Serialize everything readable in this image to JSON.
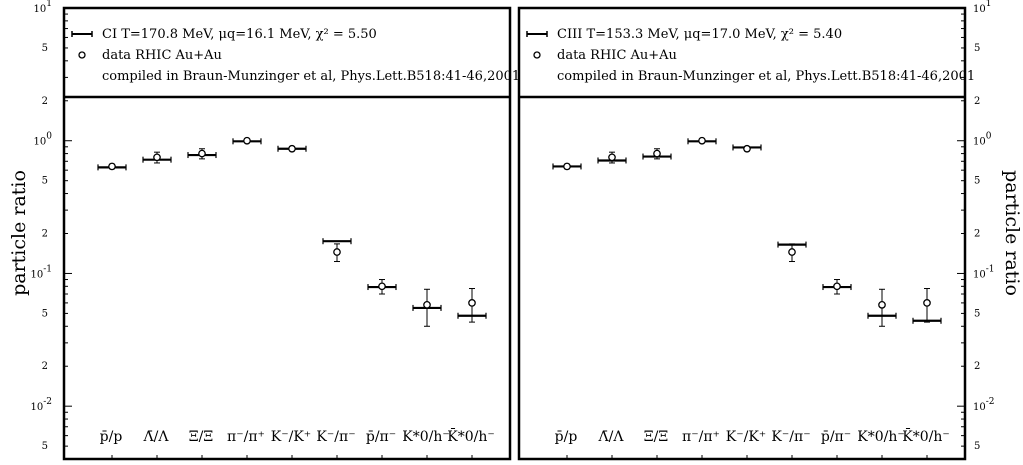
{
  "y_axis_label": "particle ratio",
  "chart_data": [
    {
      "type": "scatter",
      "y_scale": "log",
      "ylim": [
        0.004,
        10
      ],
      "ylabel": "particle ratio",
      "legend_position": "top",
      "legend": {
        "model_text": "CI T=170.8 MeV, μq=16.1 MeV, χ² = 5.50",
        "data_text": "data RHIC Au+Au",
        "compiled_text": "compiled in Braun-Munzinger et al, Phys.Lett.B518:41-46,2001"
      },
      "categories": [
        "p̄/p",
        "Λ̄/Λ",
        "Ξ̄/Ξ",
        "π⁻/π⁺",
        "K⁻/K⁺",
        "K⁻/π⁻",
        "p̄/π⁻",
        "K*0/h⁻",
        "K̄*0/h⁻"
      ],
      "series": [
        {
          "name": "CI T=170.8 MeV",
          "kind": "model",
          "values": [
            0.63,
            0.72,
            0.78,
            0.99,
            0.87,
            0.175,
            0.079,
            0.055,
            0.048
          ]
        },
        {
          "name": "data RHIC Au+Au",
          "kind": "data",
          "values": [
            0.64,
            0.75,
            0.8,
            1.0,
            0.87,
            0.145,
            0.08,
            0.058,
            0.06
          ],
          "errors": [
            0.025,
            0.07,
            0.07,
            0.02,
            0.03,
            0.022,
            0.01,
            0.018,
            0.017
          ]
        }
      ]
    },
    {
      "type": "scatter",
      "y_scale": "log",
      "ylim": [
        0.004,
        10
      ],
      "ylabel": "particle ratio",
      "legend_position": "top",
      "legend": {
        "model_text": "CIII T=153.3 MeV, μq=17.0 MeV, χ² = 5.40",
        "data_text": "data RHIC Au+Au",
        "compiled_text": "compiled in Braun-Munzinger et al, Phys.Lett.B518:41-46,2001"
      },
      "categories": [
        "p̄/p",
        "Λ̄/Λ",
        "Ξ̄/Ξ",
        "π⁻/π⁺",
        "K⁻/K⁺",
        "K⁻/π⁻",
        "p̄/π⁻",
        "K*0/h⁻",
        "K̄*0/h⁻"
      ],
      "series": [
        {
          "name": "CIII T=153.3 MeV",
          "kind": "model",
          "values": [
            0.64,
            0.71,
            0.76,
            0.99,
            0.89,
            0.165,
            0.079,
            0.048,
            0.044
          ]
        },
        {
          "name": "data RHIC Au+Au",
          "kind": "data",
          "values": [
            0.64,
            0.75,
            0.8,
            1.0,
            0.87,
            0.145,
            0.08,
            0.058,
            0.06
          ],
          "errors": [
            0.025,
            0.07,
            0.07,
            0.02,
            0.03,
            0.022,
            0.01,
            0.018,
            0.017
          ]
        }
      ]
    }
  ]
}
